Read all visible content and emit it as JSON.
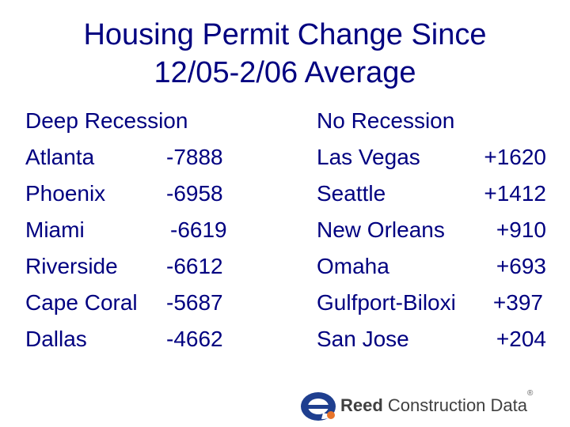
{
  "title_line1": "Housing Permit Change Since",
  "title_line2": "12/05-2/06 Average",
  "left": {
    "heading": "Deep Recession",
    "rows": [
      {
        "city": "Atlanta",
        "value": "-7888"
      },
      {
        "city": "Phoenix",
        "value": "-6958"
      },
      {
        "city": "Miami",
        "value": "-6619"
      },
      {
        "city": "Riverside",
        "value": "-6612"
      },
      {
        "city": "Cape Coral",
        "value": "-5687"
      },
      {
        "city": "Dallas",
        "value": "-4662"
      }
    ]
  },
  "right": {
    "heading": "No Recession",
    "rows": [
      {
        "city": "Las Vegas",
        "value": "+1620"
      },
      {
        "city": "Seattle",
        "value": "+1412"
      },
      {
        "city": "New Orleans",
        "value": "+910"
      },
      {
        "city": "Omaha",
        "value": "+693"
      },
      {
        "city": "Gulfport-Biloxi",
        "value": "+397"
      },
      {
        "city": "San Jose",
        "value": "+204"
      }
    ]
  },
  "logo": {
    "word1": "Reed",
    "word2": " Construction Data",
    "registered": "®"
  },
  "colors": {
    "text": "#000080",
    "logo_blue": "#1f3f8f",
    "logo_orange": "#e8742a"
  }
}
